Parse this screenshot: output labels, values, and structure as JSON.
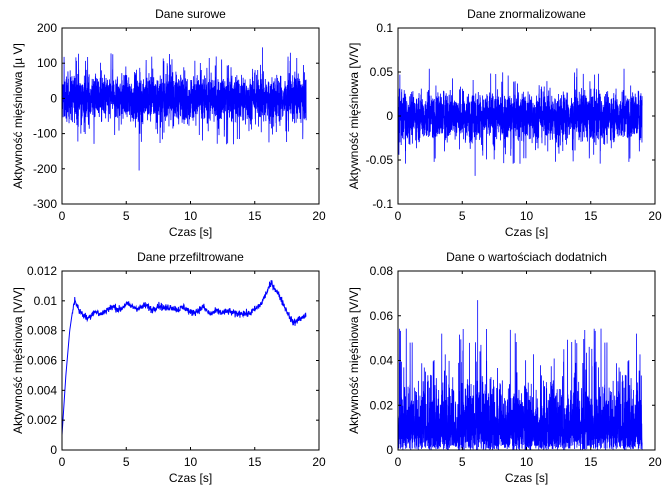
{
  "figure": {
    "line_color": "#0000ff",
    "axes_color": "#000000",
    "background": "#ffffff"
  },
  "chart_data": [
    {
      "type": "line",
      "title": "Dane surowe",
      "xlabel": "",
      "ylabel": "Aktywność mięśniowa [µ V]",
      "xlim": [
        0,
        20
      ],
      "ylim": [
        -300,
        200
      ],
      "xticks": [
        "0",
        "5",
        "10",
        "15",
        "20"
      ],
      "yticks": [
        "-300",
        "-200",
        "-100",
        "0",
        "100",
        "200"
      ],
      "signal": {
        "kind": "noise",
        "t_end": 19,
        "mean": 0,
        "amplitude": 60,
        "spike_max": 145,
        "spike_min": -205
      }
    },
    {
      "type": "line",
      "title": "Dane znormalizowane",
      "xlabel": "",
      "ylabel": "Aktywność mięśniowa [V/V]",
      "xlim": [
        0,
        20
      ],
      "ylim": [
        -0.1,
        0.1
      ],
      "xticks": [
        "0",
        "5",
        "10",
        "15",
        "20"
      ],
      "yticks": [
        "-0.1",
        "-0.05",
        "0",
        "0.05",
        "0.1"
      ],
      "signal": {
        "kind": "noise",
        "t_end": 19,
        "mean": 0,
        "amplitude": 0.025,
        "spike_max": 0.048,
        "spike_min": -0.068
      }
    },
    {
      "type": "line",
      "title": "Dane przefiltrowane",
      "xlabel": "Czas [s]",
      "ylabel": "Aktywność mięśniowa [V/V]",
      "xlim": [
        0,
        20
      ],
      "ylim": [
        0,
        0.012
      ],
      "xticks": [
        "0",
        "5",
        "10",
        "15",
        "20"
      ],
      "yticks": [
        "0",
        "0.002",
        "0.004",
        "0.006",
        "0.008",
        "0.01",
        "0.012"
      ],
      "signal": {
        "kind": "envelope",
        "t_end": 19
      },
      "x": [
        0,
        0.3,
        0.6,
        0.8,
        1.0,
        1.3,
        1.6,
        2.0,
        2.5,
        3.0,
        3.5,
        4.0,
        4.5,
        5.0,
        5.5,
        6.0,
        6.5,
        7.0,
        7.5,
        8.0,
        8.5,
        9.0,
        9.5,
        10.0,
        10.5,
        11.0,
        11.5,
        12.0,
        12.5,
        13.0,
        13.5,
        14.0,
        14.5,
        15.0,
        15.5,
        16.0,
        16.3,
        16.6,
        17.0,
        17.5,
        18.0,
        18.5,
        19.0
      ],
      "y": [
        0.001,
        0.005,
        0.008,
        0.0092,
        0.0101,
        0.0094,
        0.0091,
        0.0088,
        0.0093,
        0.0091,
        0.0094,
        0.0096,
        0.0094,
        0.0098,
        0.0096,
        0.0095,
        0.0097,
        0.0094,
        0.0097,
        0.0095,
        0.0096,
        0.0094,
        0.0096,
        0.0092,
        0.0093,
        0.0096,
        0.0091,
        0.0093,
        0.0092,
        0.0093,
        0.0091,
        0.0092,
        0.0091,
        0.0094,
        0.0098,
        0.0107,
        0.0112,
        0.0108,
        0.0102,
        0.0093,
        0.0085,
        0.0088,
        0.009
      ]
    },
    {
      "type": "line",
      "title": "Dane o wartościach dodatnich",
      "xlabel": "Czas [s]",
      "ylabel": "Aktywność mięśniowa [V/V]",
      "xlim": [
        0,
        20
      ],
      "ylim": [
        0,
        0.08
      ],
      "xticks": [
        "0",
        "5",
        "10",
        "15",
        "20"
      ],
      "yticks": [
        "0",
        "0.02",
        "0.04",
        "0.06",
        "0.08"
      ],
      "signal": {
        "kind": "rectified",
        "t_end": 19,
        "mean": 0,
        "amplitude": 0.025,
        "spike_max": 0.067
      }
    }
  ]
}
